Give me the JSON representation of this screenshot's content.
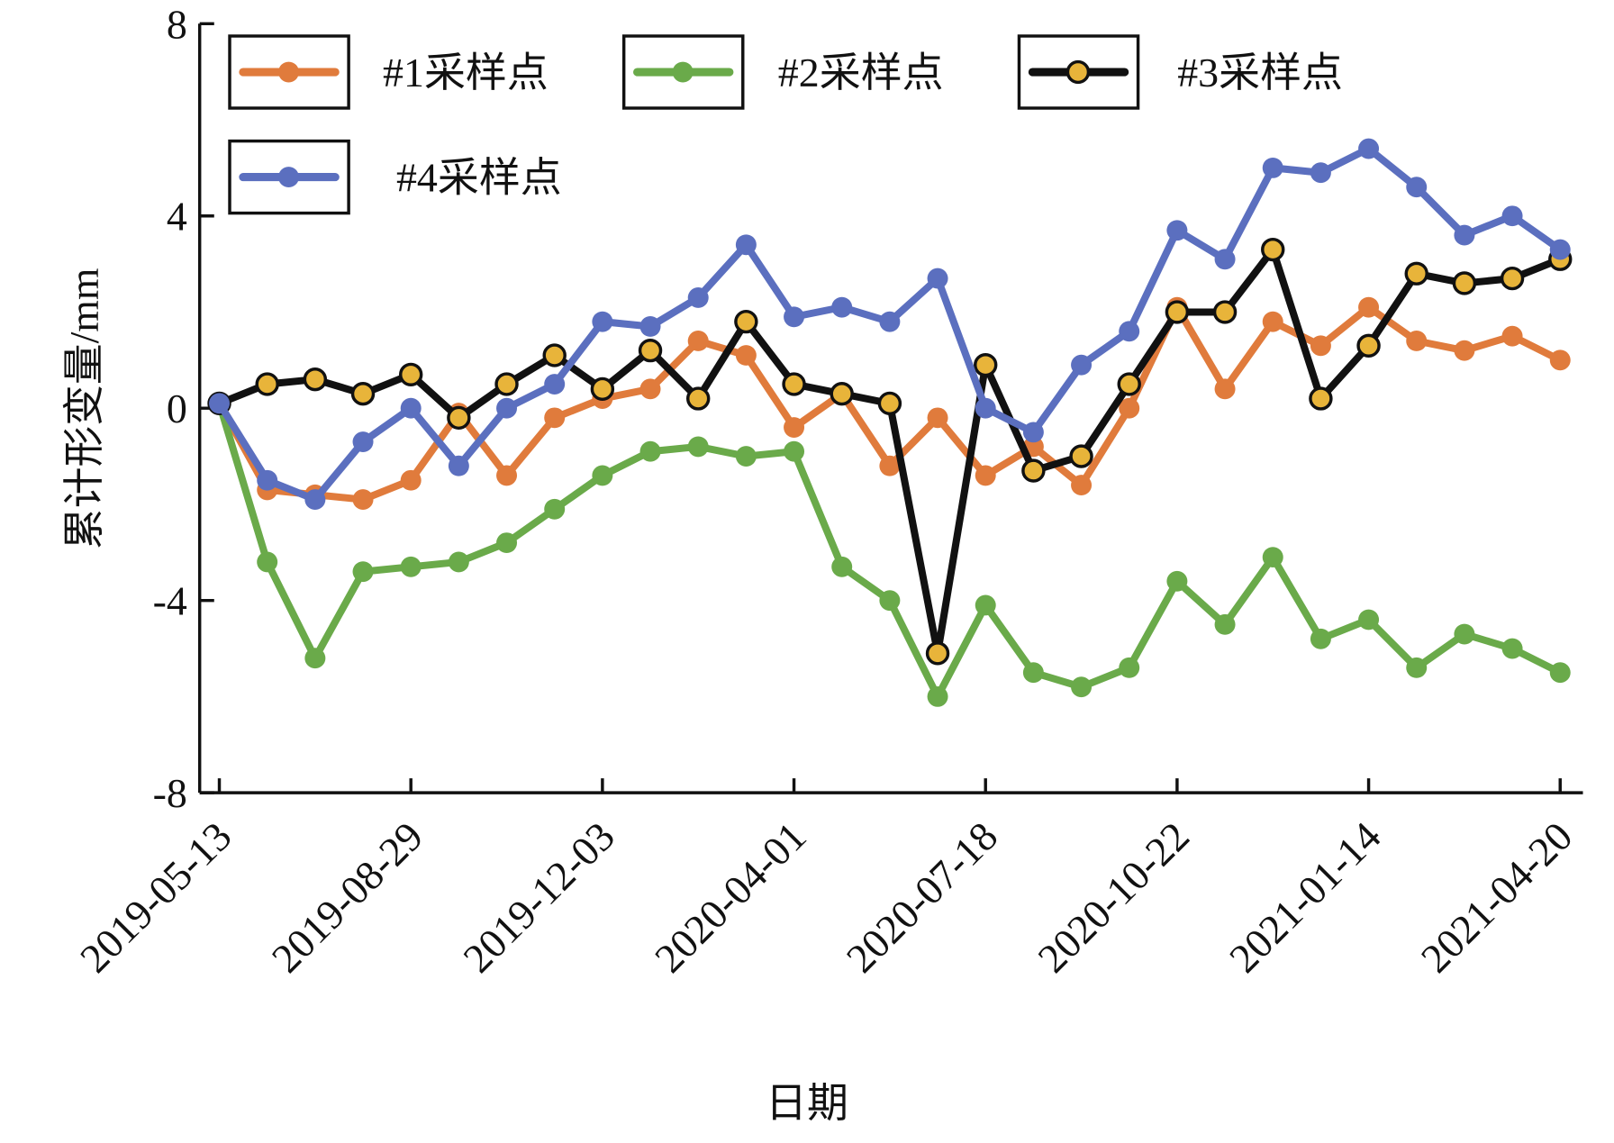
{
  "chart_data": {
    "type": "line",
    "xlabel": "日期",
    "ylabel": "累计形变量/mm",
    "categories": [
      "2019-05-13",
      null,
      null,
      null,
      "2019-08-29",
      null,
      null,
      null,
      "2019-12-03",
      null,
      null,
      null,
      "2020-04-01",
      null,
      null,
      null,
      "2020-07-18",
      null,
      null,
      null,
      "2020-10-22",
      null,
      null,
      null,
      "2021-01-14",
      null,
      null,
      null,
      "2021-04-20"
    ],
    "ylim": [
      -8,
      8
    ],
    "yticks": [
      -8,
      -4,
      0,
      4,
      8
    ],
    "grid": false,
    "series": [
      {
        "name": "#1采样点",
        "color": "#e07b3c",
        "values": [
          0.1,
          -1.7,
          -1.8,
          -1.9,
          -1.5,
          -0.1,
          -1.4,
          -0.2,
          0.2,
          0.4,
          1.4,
          1.1,
          -0.4,
          0.3,
          -1.2,
          -0.2,
          -1.4,
          -0.8,
          -1.6,
          0,
          2.1,
          0.4,
          1.8,
          1.3,
          2.1,
          1.4,
          1.2,
          1.5,
          1.0
        ]
      },
      {
        "name": "#2采样点",
        "color": "#6aaa4a",
        "values": [
          0.1,
          -3.2,
          -5.2,
          -3.4,
          -3.3,
          -3.2,
          -2.8,
          -2.1,
          -1.4,
          -0.9,
          -0.8,
          -1.0,
          -0.9,
          -3.3,
          -4.0,
          -6.0,
          -4.1,
          -5.5,
          -5.8,
          -5.4,
          -3.6,
          -4.5,
          -3.1,
          -4.8,
          -4.4,
          -5.4,
          -4.7,
          -5.0,
          -5.5
        ]
      },
      {
        "name": "#3采样点",
        "color": "#111111",
        "marker_color": "#e8b43a",
        "values": [
          0.1,
          0.5,
          0.6,
          0.3,
          0.7,
          -0.2,
          0.5,
          1.1,
          0.4,
          1.2,
          0.2,
          1.8,
          0.5,
          0.3,
          0.1,
          -5.1,
          0.9,
          -1.3,
          -1.0,
          0.5,
          2.0,
          2.0,
          3.3,
          0.2,
          1.3,
          2.8,
          2.6,
          2.7,
          3.1
        ]
      },
      {
        "name": "#4采样点",
        "color": "#5b6fbf",
        "values": [
          0.1,
          -1.5,
          -1.9,
          -0.7,
          0,
          -1.2,
          0,
          0.5,
          1.8,
          1.7,
          2.3,
          3.4,
          1.9,
          2.1,
          1.8,
          2.7,
          0,
          -0.5,
          0.9,
          1.6,
          3.7,
          3.1,
          5.0,
          4.9,
          5.4,
          4.6,
          3.6,
          4.0,
          3.3
        ]
      }
    ]
  }
}
